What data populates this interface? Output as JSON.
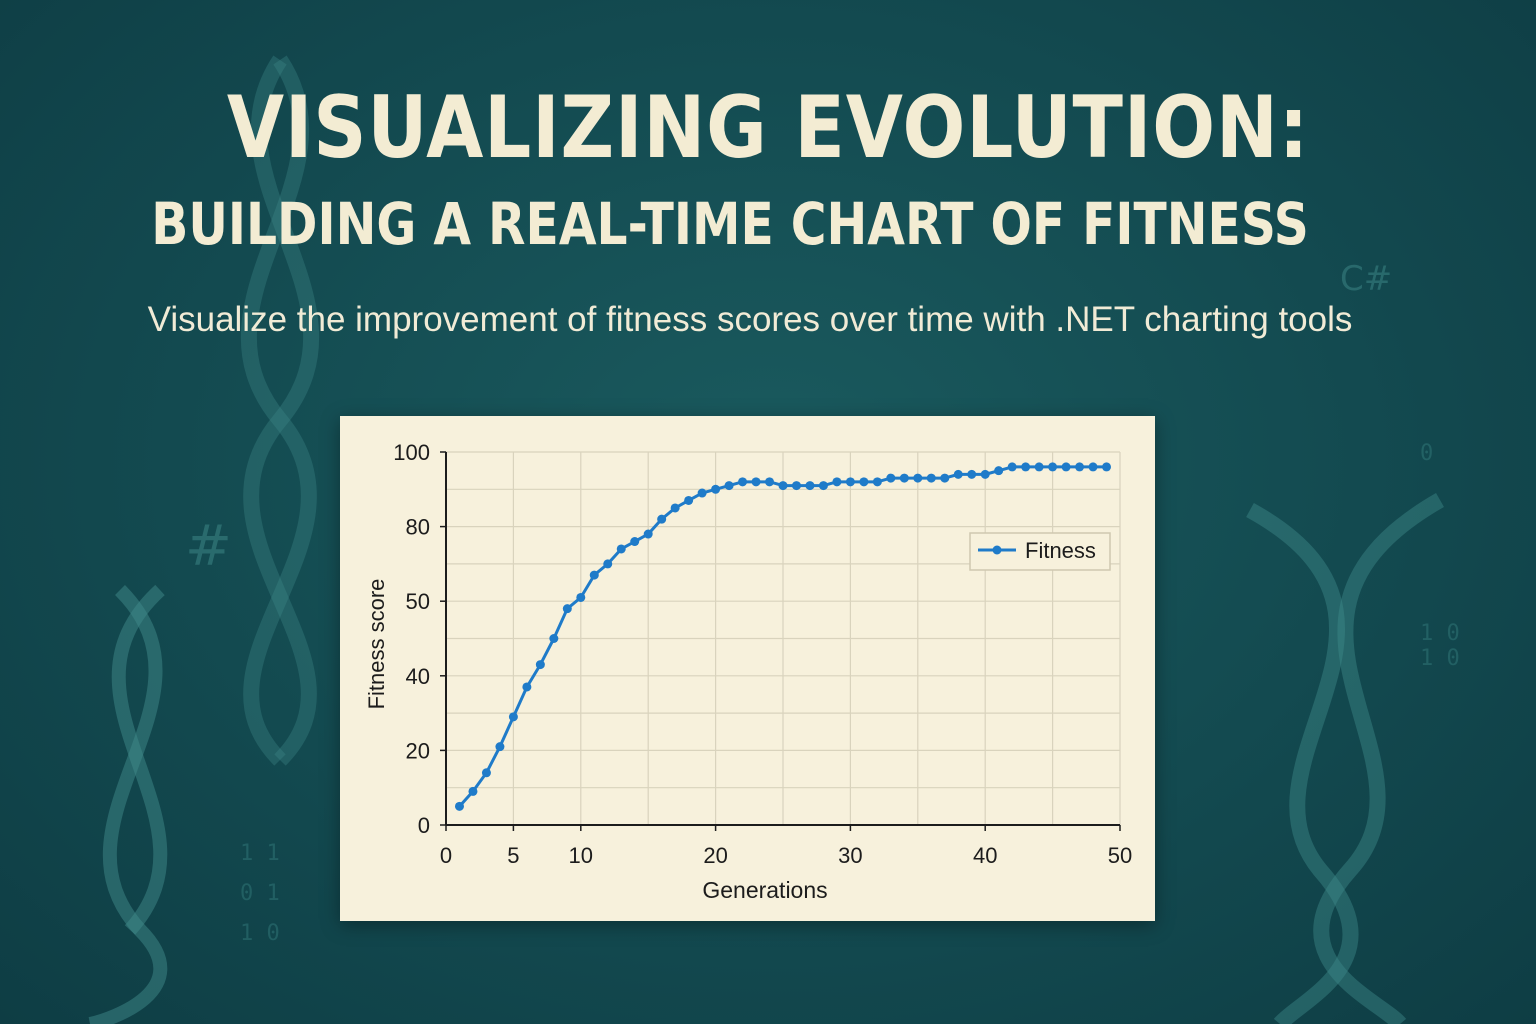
{
  "title": "VISUALIZING EVOLUTION:",
  "title_line2": "BUILDING A REAL-TIME CHART OF FITNESS",
  "subtitle": "Visualize the improvement of fitness scores over time with .NET charting tools",
  "colors": {
    "background": "#134a50",
    "title": "#f3ecd3",
    "card": "#f7f1dc",
    "series": "#1f7bc9",
    "grid": "#d9d3bd",
    "axis_text": "#1c1c1c"
  },
  "background_icons": [
    "dna-helix-icon",
    "binary-digits",
    "hash-symbol",
    "csharp-logo"
  ],
  "chart_data": {
    "type": "line",
    "title": "",
    "xlabel": "Generations",
    "ylabel": "Fitness score",
    "xlim": [
      0,
      50
    ],
    "ylim": [
      0,
      100
    ],
    "x_ticks": [
      0,
      5,
      10,
      20,
      30,
      40,
      50
    ],
    "y_ticks": [
      0,
      20,
      40,
      50,
      80,
      100
    ],
    "grid": true,
    "legend": "right",
    "series": [
      {
        "name": "Fitness",
        "x": [
          1,
          2,
          3,
          4,
          5,
          6,
          7,
          8,
          9,
          10,
          11,
          12,
          13,
          14,
          15,
          16,
          17,
          18,
          19,
          20,
          21,
          22,
          23,
          24,
          25,
          26,
          27,
          28,
          29,
          30,
          31,
          32,
          33,
          34,
          35,
          36,
          37,
          38,
          39,
          40,
          41,
          42,
          43,
          44,
          45,
          46,
          47,
          48,
          49
        ],
        "y": [
          5,
          9,
          14,
          21,
          29,
          37,
          43,
          50,
          58,
          61,
          67,
          70,
          74,
          76,
          78,
          82,
          85,
          87,
          89,
          90,
          91,
          92,
          92,
          92,
          91,
          91,
          91,
          91,
          92,
          92,
          92,
          92,
          93,
          93,
          93,
          93,
          93,
          94,
          94,
          94,
          95,
          96,
          96,
          96,
          96,
          96,
          96,
          96,
          96
        ]
      }
    ]
  }
}
